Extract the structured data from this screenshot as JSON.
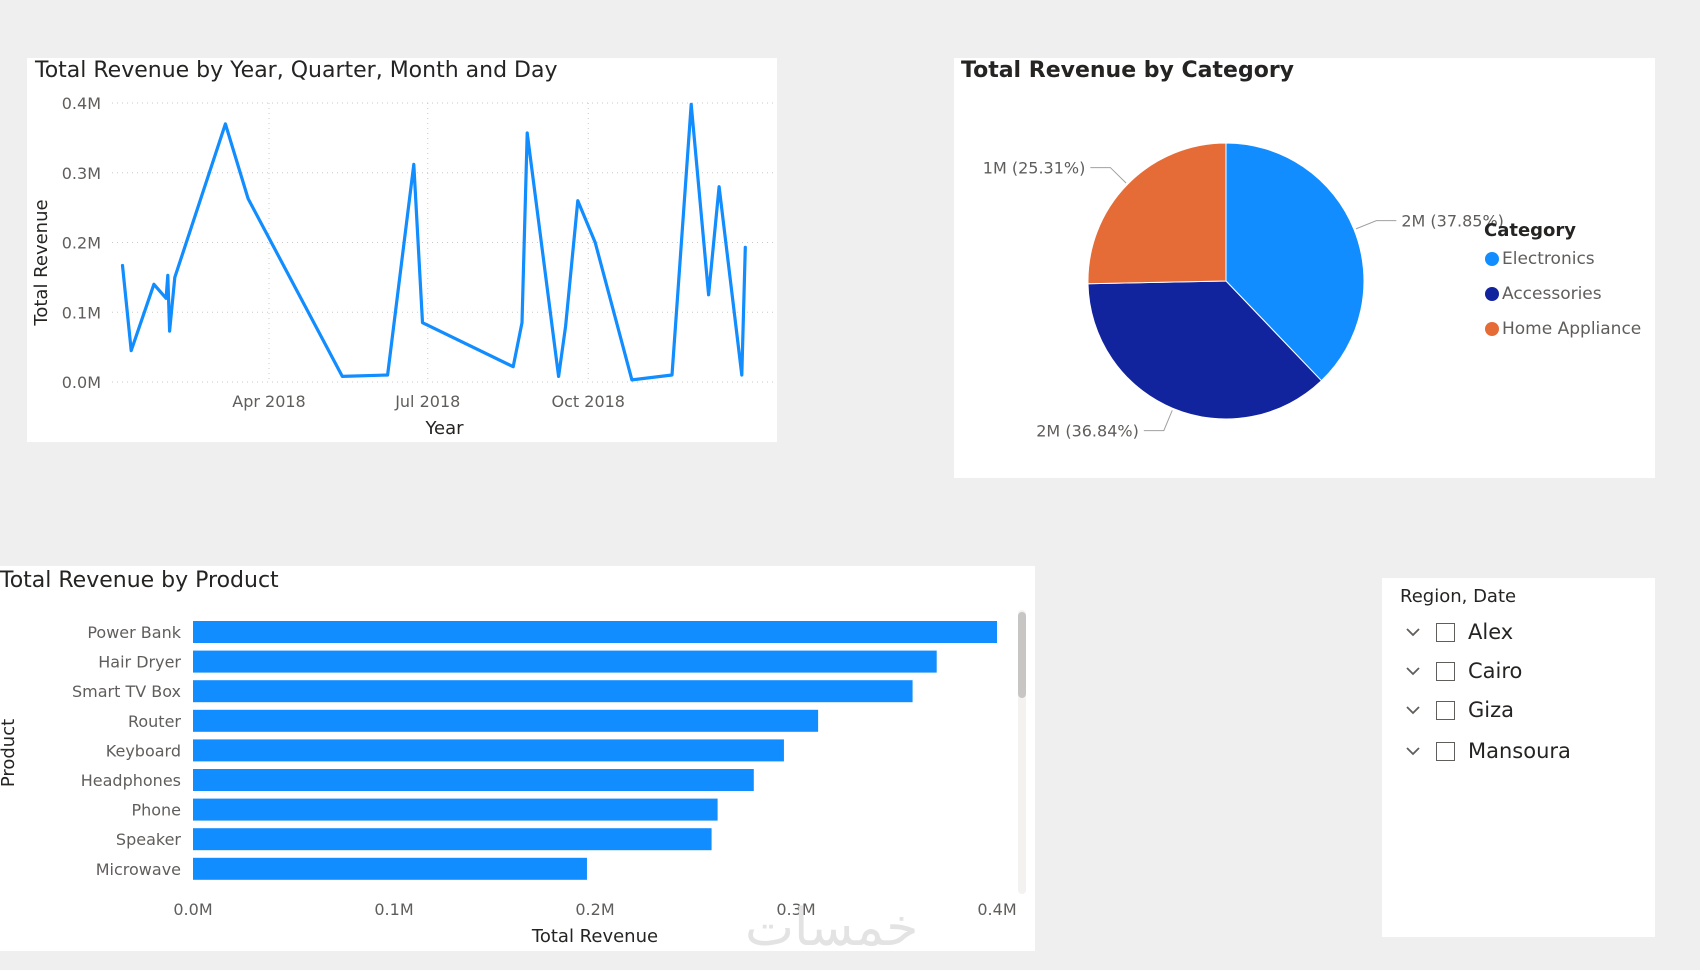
{
  "line_visual": {
    "title": "Total Revenue by Year, Quarter, Month and Day",
    "line_color": "#118DFF",
    "chart_data": {
      "type": "line",
      "xlabel": "Year",
      "ylabel": "Total Revenue",
      "xlim": [
        "2018-01-01",
        "2018-12-31"
      ],
      "ylim": [
        0,
        0.4
      ],
      "y_unit": "M",
      "grid": true,
      "x_ticks": [
        {
          "date": "2018-04-01",
          "label": "Apr 2018"
        },
        {
          "date": "2018-07-01",
          "label": "Jul 2018"
        },
        {
          "date": "2018-10-01",
          "label": "Oct 2018"
        }
      ],
      "y_ticks": [
        {
          "value": 0.0,
          "label": "0.0M"
        },
        {
          "value": 0.1,
          "label": "0.1M"
        },
        {
          "value": 0.2,
          "label": "0.2M"
        },
        {
          "value": 0.3,
          "label": "0.3M"
        },
        {
          "value": 0.4,
          "label": "0.4M"
        }
      ],
      "points": [
        {
          "x": "2018-01-07",
          "y": 0.167
        },
        {
          "x": "2018-01-12",
          "y": 0.045
        },
        {
          "x": "2018-01-25",
          "y": 0.14
        },
        {
          "x": "2018-02-01",
          "y": 0.12
        },
        {
          "x": "2018-02-02",
          "y": 0.153
        },
        {
          "x": "2018-02-03",
          "y": 0.073
        },
        {
          "x": "2018-02-06",
          "y": 0.15
        },
        {
          "x": "2018-03-07",
          "y": 0.37
        },
        {
          "x": "2018-03-20",
          "y": 0.263
        },
        {
          "x": "2018-05-13",
          "y": 0.008
        },
        {
          "x": "2018-06-08",
          "y": 0.01
        },
        {
          "x": "2018-06-23",
          "y": 0.312
        },
        {
          "x": "2018-06-28",
          "y": 0.085
        },
        {
          "x": "2018-08-19",
          "y": 0.022
        },
        {
          "x": "2018-08-24",
          "y": 0.085
        },
        {
          "x": "2018-08-27",
          "y": 0.357
        },
        {
          "x": "2018-09-14",
          "y": 0.008
        },
        {
          "x": "2018-09-18",
          "y": 0.08
        },
        {
          "x": "2018-09-25",
          "y": 0.26
        },
        {
          "x": "2018-10-05",
          "y": 0.2
        },
        {
          "x": "2018-10-26",
          "y": 0.003
        },
        {
          "x": "2018-11-18",
          "y": 0.01
        },
        {
          "x": "2018-11-29",
          "y": 0.398
        },
        {
          "x": "2018-12-09",
          "y": 0.125
        },
        {
          "x": "2018-12-15",
          "y": 0.28
        },
        {
          "x": "2018-12-28",
          "y": 0.01
        },
        {
          "x": "2018-12-30",
          "y": 0.193
        }
      ]
    }
  },
  "pie_visual": {
    "title": "Total Revenue by Category",
    "chart_data": {
      "type": "pie",
      "legend_title": "Category",
      "legend_placement": "right",
      "slices": [
        {
          "name": "Electronics",
          "percent": 37.85,
          "label": "2M (37.85%)",
          "color": "#118DFF"
        },
        {
          "name": "Accessories",
          "percent": 36.84,
          "label": "2M (36.84%)",
          "color": "#12239E"
        },
        {
          "name": "Home Appliance",
          "percent": 25.31,
          "label": "1M (25.31%)",
          "color": "#E66C37"
        }
      ]
    }
  },
  "bar_visual": {
    "title": "Total Revenue by Product",
    "bar_color": "#118DFF",
    "chart_data": {
      "type": "bar",
      "orientation": "horizontal",
      "xlabel": "Total Revenue",
      "ylabel": "Product",
      "xlim": [
        0,
        0.4
      ],
      "x_unit": "M",
      "x_ticks": [
        {
          "value": 0.0,
          "label": "0.0M"
        },
        {
          "value": 0.1,
          "label": "0.1M"
        },
        {
          "value": 0.2,
          "label": "0.2M"
        },
        {
          "value": 0.3,
          "label": "0.3M"
        },
        {
          "value": 0.4,
          "label": "0.4M"
        }
      ],
      "categories": [
        "Power Bank",
        "Hair Dryer",
        "Smart TV Box",
        "Router",
        "Keyboard",
        "Headphones",
        "Phone",
        "Speaker",
        "Microwave"
      ],
      "values": [
        0.4,
        0.37,
        0.358,
        0.311,
        0.294,
        0.279,
        0.261,
        0.258,
        0.196
      ]
    }
  },
  "slicer": {
    "title": "Region, Date",
    "items": [
      {
        "label": "Alex",
        "checked": false
      },
      {
        "label": "Cairo",
        "checked": false
      },
      {
        "label": "Giza",
        "checked": false
      },
      {
        "label": "Mansoura",
        "checked": false
      }
    ]
  },
  "watermark": "خمسات"
}
